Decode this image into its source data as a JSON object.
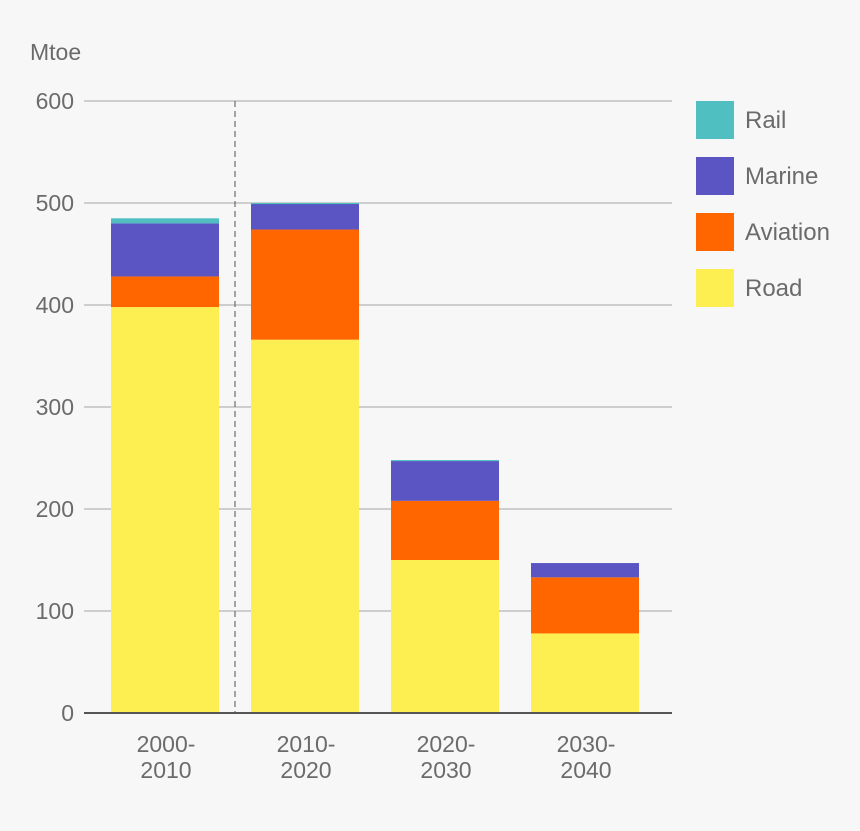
{
  "chart_data": {
    "type": "bar",
    "stacked": true,
    "title": "",
    "xlabel": "",
    "ylabel": "Mtoe",
    "ylim": [
      0,
      600
    ],
    "yticks": [
      0,
      100,
      200,
      300,
      400,
      500,
      600
    ],
    "yticks_text": [
      "0",
      "100",
      "200",
      "300",
      "400",
      "500",
      "600"
    ],
    "categories": [
      [
        "2000-",
        "2010"
      ],
      [
        "2010-",
        "2020"
      ],
      [
        "2020-",
        "2030"
      ],
      [
        "2030-",
        "2040"
      ]
    ],
    "series": [
      {
        "name": "Road",
        "color": "#fdee52",
        "values": [
          398,
          366,
          150,
          78
        ]
      },
      {
        "name": "Aviation",
        "color": "#ff6600",
        "values": [
          30,
          108,
          58,
          55
        ]
      },
      {
        "name": "Marine",
        "color": "#5a55c2",
        "values": [
          52,
          25,
          39,
          14
        ]
      },
      {
        "name": "Rail",
        "color": "#4fbfc2",
        "values": [
          5,
          1,
          1,
          0
        ]
      }
    ],
    "legend": {
      "position": "right",
      "order": [
        "Rail",
        "Marine",
        "Aviation",
        "Road"
      ]
    },
    "grid": true,
    "divider_after_category": 0,
    "gridline_color": "#b5b5b5",
    "axis_color": "#555555"
  }
}
